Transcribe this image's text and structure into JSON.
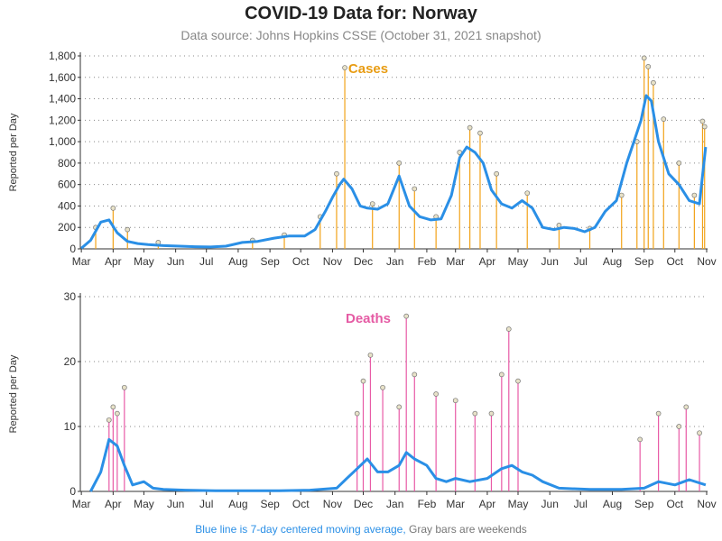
{
  "title": "COVID-19 Data for: Norway",
  "subtitle": "Data source: Johns Hopkins CSSE (October 31, 2021 snapshot)",
  "footer": {
    "blue_text": "Blue line is 7-day centered moving average,",
    "gray_text": "Gray bars are weekends"
  },
  "colors": {
    "cases": "#f2a218",
    "cases_title": "#e89c13",
    "deaths": "#e85aa6",
    "deaths_title": "#e55ba4",
    "average": "#2a8fe6",
    "weekend": "#999999",
    "grid": "#888888"
  },
  "chart_data": [
    {
      "type": "bar",
      "panel": "Cases",
      "title": "Cases",
      "ylabel": "Reported per Day",
      "ylim": [
        0,
        1800
      ],
      "yticks": [
        "0",
        "200",
        "400",
        "600",
        "800",
        "1,000",
        "1,200",
        "1,400",
        "1,600",
        "1,800"
      ],
      "ytick_values": [
        0,
        200,
        400,
        600,
        800,
        1000,
        1200,
        1400,
        1600,
        1800
      ],
      "xticks": [
        "Mar",
        "Apr",
        "May",
        "Jun",
        "Jul",
        "Aug",
        "Sep",
        "Oct",
        "Nov",
        "Dec",
        "Jan",
        "Feb",
        "Mar",
        "Apr",
        "May",
        "Jun",
        "Jul",
        "Aug",
        "Sep",
        "Oct",
        "Nov"
      ],
      "grid": true,
      "series": [
        {
          "name": "7-day centered moving average",
          "x": [
            "2020-03-01",
            "2020-03-10",
            "2020-03-20",
            "2020-03-28",
            "2020-04-05",
            "2020-04-15",
            "2020-04-25",
            "2020-05-05",
            "2020-05-20",
            "2020-06-05",
            "2020-06-20",
            "2020-07-05",
            "2020-07-20",
            "2020-08-05",
            "2020-08-20",
            "2020-09-05",
            "2020-09-20",
            "2020-10-05",
            "2020-10-15",
            "2020-10-25",
            "2020-11-01",
            "2020-11-08",
            "2020-11-12",
            "2020-11-20",
            "2020-11-28",
            "2020-12-05",
            "2020-12-15",
            "2020-12-25",
            "2021-01-05",
            "2021-01-15",
            "2021-01-25",
            "2021-02-05",
            "2021-02-15",
            "2021-02-25",
            "2021-03-05",
            "2021-03-12",
            "2021-03-20",
            "2021-03-28",
            "2021-04-05",
            "2021-04-15",
            "2021-04-25",
            "2021-05-05",
            "2021-05-15",
            "2021-05-25",
            "2021-06-05",
            "2021-06-15",
            "2021-06-25",
            "2021-07-05",
            "2021-07-15",
            "2021-07-25",
            "2021-08-05",
            "2021-08-15",
            "2021-08-22",
            "2021-08-29",
            "2021-09-03",
            "2021-09-08",
            "2021-09-15",
            "2021-09-25",
            "2021-10-05",
            "2021-10-15",
            "2021-10-25",
            "2021-10-31"
          ],
          "y": [
            5,
            80,
            250,
            270,
            150,
            70,
            50,
            40,
            30,
            25,
            20,
            18,
            25,
            60,
            70,
            100,
            120,
            120,
            180,
            350,
            480,
            600,
            650,
            560,
            400,
            380,
            370,
            420,
            680,
            400,
            300,
            270,
            280,
            500,
            850,
            950,
            900,
            800,
            550,
            420,
            380,
            450,
            380,
            200,
            180,
            200,
            190,
            160,
            200,
            350,
            450,
            800,
            1000,
            1200,
            1430,
            1380,
            1000,
            700,
            600,
            450,
            420,
            950
          ]
        },
        {
          "name": "Daily cases",
          "x": [
            "2020-03-15",
            "2020-04-01",
            "2020-04-15",
            "2020-05-15",
            "2020-08-15",
            "2020-09-15",
            "2020-10-20",
            "2020-11-05",
            "2020-11-13",
            "2020-12-10",
            "2021-01-05",
            "2021-01-20",
            "2021-02-10",
            "2021-03-05",
            "2021-03-15",
            "2021-03-25",
            "2021-04-10",
            "2021-05-10",
            "2021-06-10",
            "2021-07-10",
            "2021-08-10",
            "2021-08-25",
            "2021-09-01",
            "2021-09-05",
            "2021-09-10",
            "2021-09-20",
            "2021-10-05",
            "2021-10-20",
            "2021-10-28",
            "2021-10-30"
          ],
          "y": [
            200,
            380,
            180,
            60,
            80,
            130,
            300,
            700,
            1690,
            420,
            800,
            560,
            300,
            900,
            1130,
            1080,
            700,
            520,
            220,
            190,
            500,
            1000,
            1780,
            1700,
            1550,
            1210,
            800,
            500,
            1190,
            1140
          ]
        }
      ]
    },
    {
      "type": "bar",
      "panel": "Deaths",
      "title": "Deaths",
      "ylabel": "Reported per Day",
      "ylim": [
        0,
        30
      ],
      "yticks": [
        "0",
        "10",
        "20",
        "30"
      ],
      "ytick_values": [
        0,
        10,
        20,
        30
      ],
      "xticks": [
        "Mar",
        "Apr",
        "May",
        "Jun",
        "Jul",
        "Aug",
        "Sep",
        "Oct",
        "Nov",
        "Dec",
        "Jan",
        "Feb",
        "Mar",
        "Apr",
        "May",
        "Jun",
        "Jul",
        "Aug",
        "Sep",
        "Oct",
        "Nov"
      ],
      "grid": true,
      "series": [
        {
          "name": "7-day centered moving average",
          "x": [
            "2020-03-10",
            "2020-03-20",
            "2020-03-28",
            "2020-04-05",
            "2020-04-12",
            "2020-04-20",
            "2020-05-01",
            "2020-05-10",
            "2020-05-20",
            "2020-06-10",
            "2020-07-10",
            "2020-08-10",
            "2020-09-10",
            "2020-10-10",
            "2020-11-05",
            "2020-11-15",
            "2020-11-25",
            "2020-12-05",
            "2020-12-15",
            "2020-12-25",
            "2021-01-05",
            "2021-01-12",
            "2021-01-20",
            "2021-02-01",
            "2021-02-10",
            "2021-02-20",
            "2021-03-01",
            "2021-03-15",
            "2021-04-01",
            "2021-04-15",
            "2021-04-25",
            "2021-05-05",
            "2021-05-15",
            "2021-05-25",
            "2021-06-10",
            "2021-07-10",
            "2021-08-10",
            "2021-09-01",
            "2021-09-15",
            "2021-10-01",
            "2021-10-15",
            "2021-10-31"
          ],
          "y": [
            0,
            3,
            8,
            7,
            4,
            1,
            1.5,
            0.5,
            0.3,
            0.2,
            0.1,
            0.1,
            0.1,
            0.2,
            0.5,
            2,
            3.5,
            5,
            3,
            3,
            4,
            6,
            5,
            4,
            2,
            1.5,
            2,
            1.5,
            2,
            3.5,
            4,
            3,
            2.5,
            1.5,
            0.5,
            0.3,
            0.3,
            0.5,
            1.5,
            1,
            1.8,
            1
          ]
        },
        {
          "name": "Daily deaths",
          "x": [
            "2020-03-28",
            "2020-04-01",
            "2020-04-05",
            "2020-04-12",
            "2020-11-25",
            "2020-12-01",
            "2020-12-08",
            "2020-12-20",
            "2021-01-05",
            "2021-01-12",
            "2021-01-20",
            "2021-02-10",
            "2021-03-01",
            "2021-03-20",
            "2021-04-05",
            "2021-04-15",
            "2021-04-22",
            "2021-05-01",
            "2021-08-28",
            "2021-09-15",
            "2021-10-05",
            "2021-10-12",
            "2021-10-25"
          ],
          "y": [
            11,
            13,
            12,
            16,
            12,
            17,
            21,
            16,
            13,
            27,
            18,
            15,
            14,
            12,
            12,
            18,
            25,
            17,
            8,
            12,
            10,
            13,
            9
          ]
        }
      ]
    }
  ]
}
